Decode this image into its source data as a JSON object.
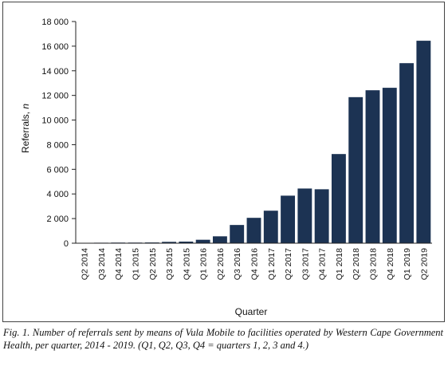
{
  "chart_data": {
    "type": "bar",
    "categories": [
      "Q2 2014",
      "Q3 2014",
      "Q4 2014",
      "Q1 2015",
      "Q2 2015",
      "Q3 2015",
      "Q4 2015",
      "Q1 2016",
      "Q2 2016",
      "Q3 2016",
      "Q4 2016",
      "Q1 2017",
      "Q2 2017",
      "Q3 2017",
      "Q4 2017",
      "Q1 2018",
      "Q2 2018",
      "Q3 2018",
      "Q4 2018",
      "Q1 2019",
      "Q2 2019"
    ],
    "values": [
      30,
      40,
      50,
      50,
      60,
      110,
      130,
      280,
      560,
      1480,
      2060,
      2640,
      3860,
      4440,
      4380,
      7240,
      11860,
      12420,
      12620,
      14620,
      16440
    ],
    "xlabel": "Quarter",
    "ylabel": "Referrals, n",
    "ylim": [
      0,
      18000
    ],
    "yticks": [
      0,
      2000,
      4000,
      6000,
      8000,
      10000,
      12000,
      14000,
      16000,
      18000
    ],
    "ytick_labels": [
      "0",
      "2 000",
      "4 000",
      "6 000",
      "8 000",
      "10 000",
      "12 000",
      "14 000",
      "16 000",
      "18 000"
    ],
    "bar_color": "#1c3353",
    "grid": false,
    "legend": "none"
  },
  "caption": "Fig. 1. Number of referrals sent by means of Vula Mobile to facilities operated by Western Cape Government Health, per quarter, 2014 - 2019. (Q1, Q2, Q3, Q4 = quarters 1, 2, 3 and 4.)"
}
